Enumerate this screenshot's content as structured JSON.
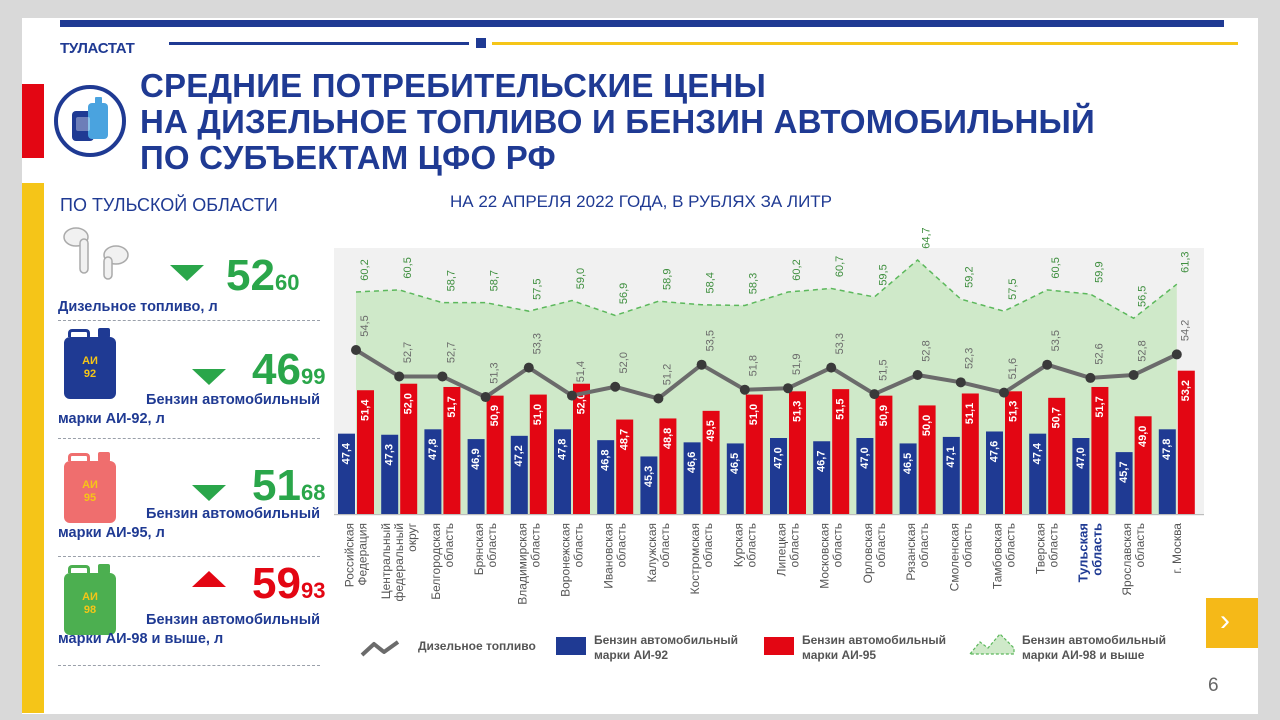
{
  "header": {
    "brand": "ТУЛАСТАТ",
    "title_lines": [
      "СРЕДНИЕ ПОТРЕБИТЕЛЬСКИЕ ЦЕНЫ",
      "НА ДИЗЕЛЬНОЕ ТОПЛИВО И БЕНЗИН АВТОМОБИЛЬНЫЙ",
      "ПО СУБЪЕКТАМ ЦФО РФ"
    ],
    "region_subtitle": "ПО ТУЛЬСКОЙ ОБЛАСТИ",
    "date_subtitle": "НА 22 АПРЕЛЯ 2022 ГОДА, В РУБЛЯХ ЗА ЛИТР"
  },
  "colors": {
    "navy": "#1f3a93",
    "red": "#e30613",
    "yellow": "#f5c518",
    "green": "#2aa64a",
    "diesel_line": "#6b6b6b",
    "ai98_fill": "#cfe9c9",
    "ai98_stroke": "#5cb85c"
  },
  "tula_prices": [
    {
      "icon": "diesel-icon",
      "rub": "52",
      "kop": "60",
      "trend": "down",
      "label_lines": [
        "Дизельное топливо, л"
      ]
    },
    {
      "icon": "canister-ai92-icon",
      "canister_text": [
        "АИ",
        "92"
      ],
      "canister_color": "#1f3a93",
      "rub": "46",
      "kop": "99",
      "trend": "down",
      "label_lines": [
        "Бензин автомобильный",
        "марки АИ-92, л"
      ]
    },
    {
      "icon": "canister-ai95-icon",
      "canister_text": [
        "АИ",
        "95"
      ],
      "canister_color": "#ef6e6e",
      "rub": "51",
      "kop": "68",
      "trend": "down",
      "label_lines": [
        "Бензин автомобильный",
        "марки АИ-95, л"
      ]
    },
    {
      "icon": "canister-ai98-icon",
      "canister_text": [
        "АИ",
        "98"
      ],
      "canister_color": "#4caf50",
      "rub": "59",
      "kop": "93",
      "trend": "up",
      "label_lines": [
        "Бензин автомобильный",
        "марки АИ-98 и выше, л"
      ]
    }
  ],
  "chart_data": {
    "type": "bar",
    "title": "НА 22 АПРЕЛЯ 2022 ГОДА, В РУБЛЯХ ЗА ЛИТР",
    "categories": [
      [
        "Российская",
        "Федерация"
      ],
      [
        "Центральный",
        "федеральный",
        "округ"
      ],
      [
        "Белгородская",
        "область"
      ],
      [
        "Брянская",
        "область"
      ],
      [
        "Владимирская",
        "область"
      ],
      [
        "Воронежская",
        "область"
      ],
      [
        "Ивановская",
        "область"
      ],
      [
        "Калужская",
        "область"
      ],
      [
        "Костромская",
        "область"
      ],
      [
        "Курская",
        "область"
      ],
      [
        "Липецкая",
        "область"
      ],
      [
        "Московская",
        "область"
      ],
      [
        "Орловская",
        "область"
      ],
      [
        "Рязанская",
        "область"
      ],
      [
        "Смоленская",
        "область"
      ],
      [
        "Тамбовская",
        "область"
      ],
      [
        "Тверская",
        "область"
      ],
      [
        "Тульская",
        "область"
      ],
      [
        "Ярославская",
        "область"
      ],
      [
        "г. Москва"
      ]
    ],
    "highlight_category": 17,
    "series": [
      {
        "name": "Бензин автомобильный марки АИ-92",
        "kind": "bar",
        "color": "#1f3a93",
        "values": [
          47.4,
          47.3,
          47.8,
          46.9,
          47.2,
          47.8,
          46.8,
          45.3,
          46.6,
          46.5,
          47.0,
          46.7,
          47.0,
          46.5,
          47.1,
          47.6,
          47.4,
          47.0,
          45.7,
          47.8
        ]
      },
      {
        "name": "Бензин автомобильный марки АИ-95",
        "kind": "bar",
        "color": "#e30613",
        "values": [
          51.4,
          52.0,
          51.7,
          50.9,
          51.0,
          52.0,
          48.7,
          48.8,
          49.5,
          51.0,
          51.3,
          51.5,
          50.9,
          50.0,
          51.1,
          51.3,
          50.7,
          51.7,
          49.0,
          53.2
        ]
      },
      {
        "name": "Дизельное топливо",
        "kind": "line",
        "color": "#6b6b6b",
        "values": [
          54.5,
          52.7,
          52.7,
          51.3,
          53.3,
          51.4,
          52.0,
          51.2,
          53.5,
          51.8,
          51.9,
          53.3,
          51.5,
          52.8,
          52.3,
          51.6,
          53.5,
          52.6,
          52.8,
          54.2
        ]
      },
      {
        "name": "Бензин автомобильный марки АИ-98 и выше",
        "kind": "area",
        "color": "#5cb85c",
        "values": [
          60.2,
          60.5,
          58.7,
          58.7,
          57.5,
          59.0,
          56.9,
          58.9,
          58.4,
          58.3,
          60.2,
          60.7,
          59.5,
          64.7,
          59.2,
          57.5,
          60.5,
          59.9,
          56.5,
          61.3
        ]
      }
    ],
    "legend": [
      {
        "name": "Дизельное топливо",
        "lines": [
          "Дизельное топливо"
        ],
        "symbol": "line"
      },
      {
        "name": "Бензин автомобильный марки АИ-92",
        "lines": [
          "Бензин автомобильный",
          "марки АИ-92"
        ],
        "symbol": "bar-navy"
      },
      {
        "name": "Бензин автомобильный марки АИ-95",
        "lines": [
          "Бензин автомобильный",
          "марки АИ-95"
        ],
        "symbol": "bar-red"
      },
      {
        "name": "Бензин автомобильный марки АИ-98 и выше",
        "lines": [
          "Бензин автомобильный",
          "марки АИ-98 и выше"
        ],
        "symbol": "area"
      }
    ],
    "legend_position": "bottom",
    "grid": false
  },
  "footer": {
    "page_number": "6",
    "next_label": "›"
  }
}
